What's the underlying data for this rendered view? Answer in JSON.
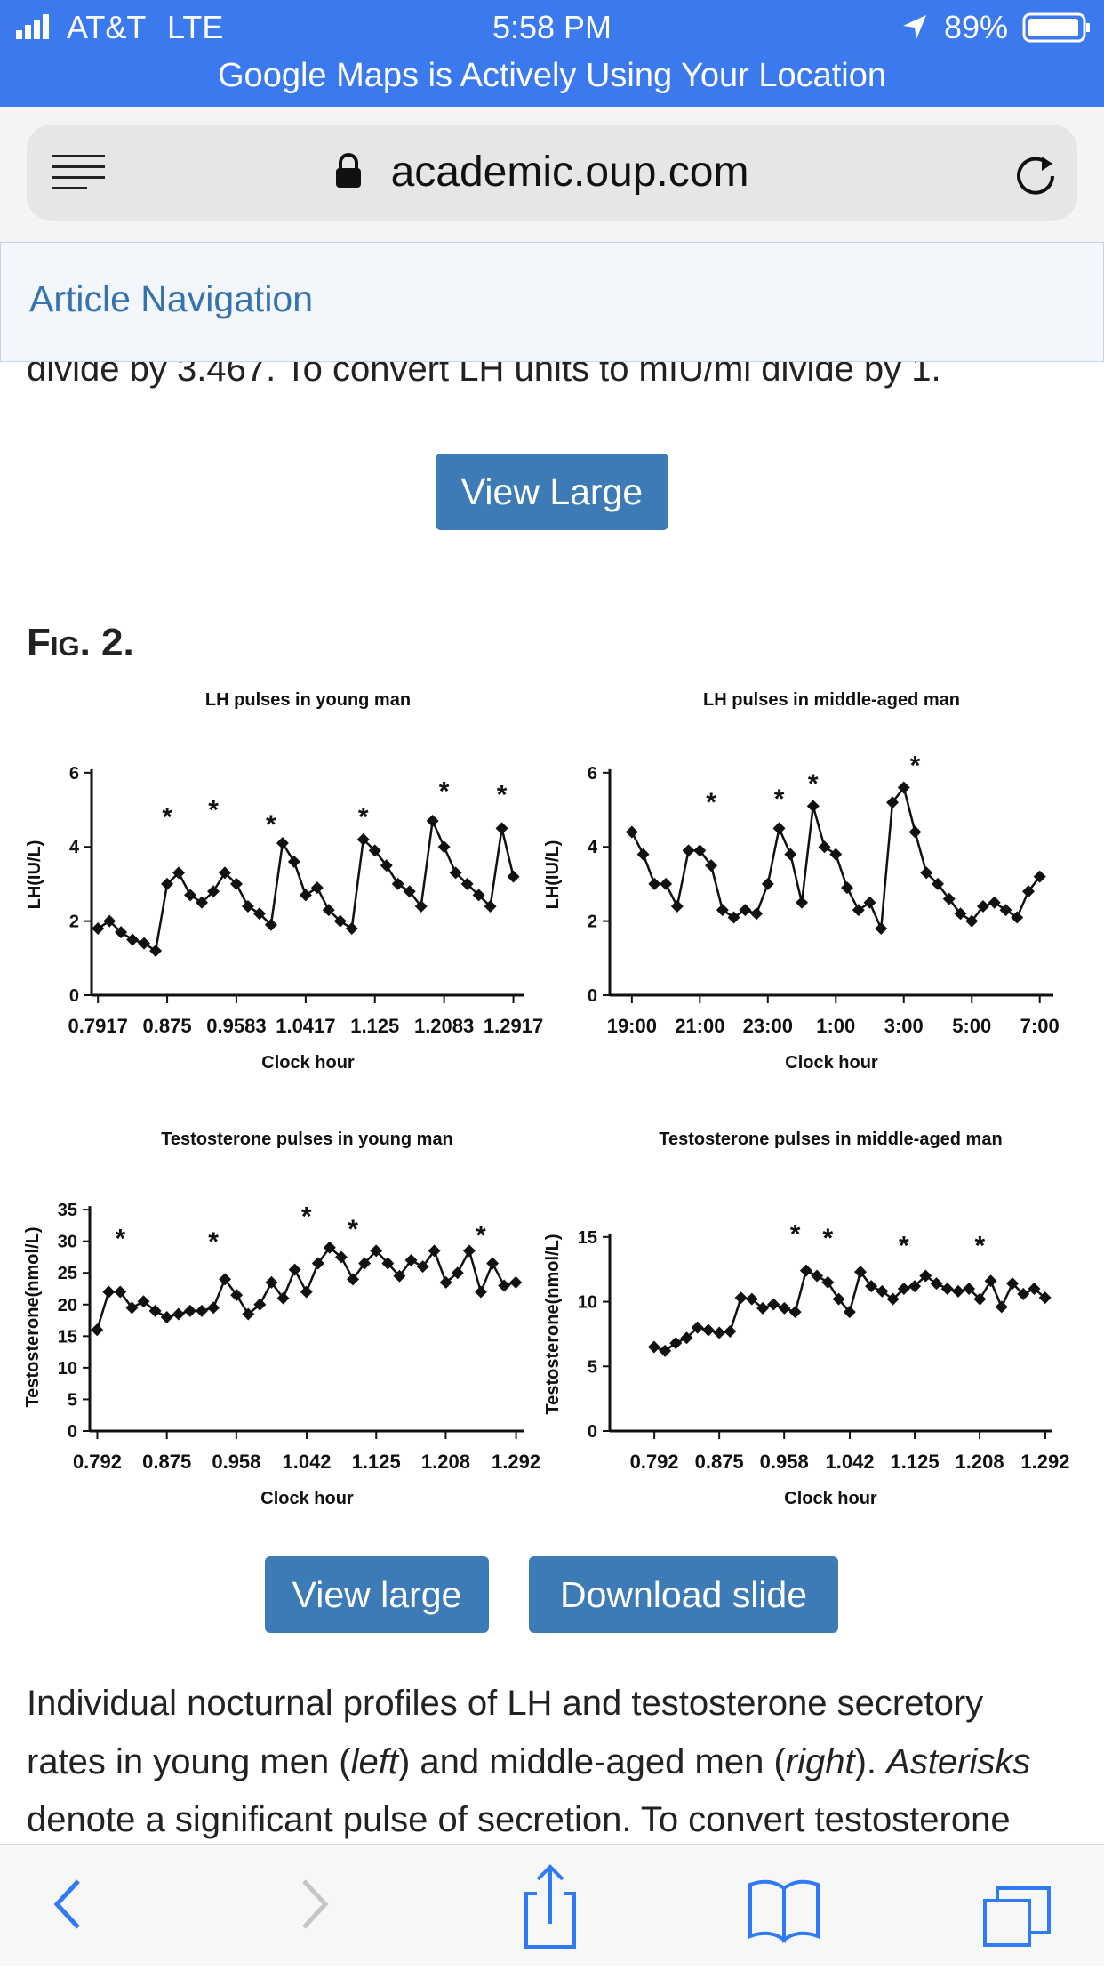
{
  "status_bar": {
    "carrier": "AT&T",
    "network": "LTE",
    "time": "5:58 PM",
    "battery": "89%"
  },
  "banner": "Google Maps is Actively Using Your Location",
  "url": "academic.oup.com",
  "article_nav": "Article Navigation",
  "partial_text": "divide by 3.467. To convert LH units to mIU/ml divide by 1.",
  "view_large_top": "View Large",
  "figure_label": "Fig. 2.",
  "chart_data": [
    {
      "type": "line",
      "title": "LH pulses in young man",
      "x_label": "Clock hour",
      "y_label": "LH(IU/L)",
      "x": [
        0.7917,
        0.8056,
        0.8194,
        0.8333,
        0.8472,
        0.8611,
        0.875,
        0.8889,
        0.9028,
        0.9167,
        0.9306,
        0.9444,
        0.9583,
        0.9722,
        0.9861,
        1.0,
        1.0139,
        1.0278,
        1.0417,
        1.0556,
        1.0694,
        1.0833,
        1.0972,
        1.1111,
        1.125,
        1.1389,
        1.1528,
        1.1667,
        1.1806,
        1.1944,
        1.2083,
        1.2222,
        1.2361,
        1.25,
        1.2639,
        1.2778,
        1.2917
      ],
      "values": [
        1.8,
        2.0,
        1.7,
        1.5,
        1.4,
        1.2,
        3.0,
        3.3,
        2.7,
        2.5,
        2.8,
        3.3,
        3.0,
        2.4,
        2.2,
        1.9,
        4.1,
        3.6,
        2.7,
        2.9,
        2.3,
        2.0,
        1.8,
        4.2,
        3.9,
        3.5,
        3.0,
        2.8,
        2.4,
        4.7,
        4.0,
        3.3,
        3.0,
        2.7,
        2.4,
        4.5,
        3.2
      ],
      "color": "#111111",
      "xlim": [
        0.784,
        1.305
      ],
      "xticks": [
        0.7917,
        0.875,
        0.9583,
        1.0417,
        1.125,
        1.2083,
        1.2917
      ],
      "ylim": [
        0,
        6.5
      ],
      "yticks": [
        0,
        2,
        4,
        6
      ],
      "grid": false,
      "annotations": [
        {
          "x": 0.875,
          "y": 4.9,
          "text": "*"
        },
        {
          "x": 0.9306,
          "y": 5.1,
          "text": "*"
        },
        {
          "x": 1.0,
          "y": 4.7,
          "text": "*"
        },
        {
          "x": 1.1111,
          "y": 4.9,
          "text": "*"
        },
        {
          "x": 1.2083,
          "y": 5.6,
          "text": "*"
        },
        {
          "x": 1.2778,
          "y": 5.5,
          "text": "*"
        }
      ]
    },
    {
      "type": "line",
      "title": "LH pulses in middle-aged man",
      "x_label": "Clock hour",
      "y_label": "LH(IU/L)",
      "x": [
        19,
        19.333,
        19.667,
        20,
        20.333,
        20.667,
        21,
        21.333,
        21.667,
        22,
        22.333,
        22.667,
        23,
        23.333,
        23.667,
        24,
        24.333,
        24.667,
        25,
        25.333,
        25.667,
        26,
        26.333,
        26.667,
        27,
        27.333,
        27.667,
        28,
        28.333,
        28.667,
        29,
        29.333,
        29.667,
        30,
        30.333,
        30.667,
        31
      ],
      "values": [
        4.4,
        3.8,
        3.0,
        3.0,
        2.4,
        3.9,
        3.9,
        3.5,
        2.3,
        2.1,
        2.3,
        2.2,
        3.0,
        4.5,
        3.8,
        2.5,
        5.1,
        4.0,
        3.8,
        2.9,
        2.3,
        2.5,
        1.8,
        5.2,
        5.6,
        4.4,
        3.3,
        3.0,
        2.6,
        2.2,
        2.0,
        2.4,
        2.5,
        2.3,
        2.1,
        2.8,
        3.2
      ],
      "color": "#111111",
      "xlim": [
        18.35,
        31.4
      ],
      "xticks": [
        {
          "value": 19,
          "label": "19:00"
        },
        {
          "value": 21,
          "label": "21:00"
        },
        {
          "value": 23,
          "label": "23:00"
        },
        {
          "value": 25,
          "label": "1:00"
        },
        {
          "value": 27,
          "label": "3:00"
        },
        {
          "value": 29,
          "label": "5:00"
        },
        {
          "value": 31,
          "label": "7:00"
        }
      ],
      "ylim": [
        0,
        6.5
      ],
      "yticks": [
        0,
        2,
        4,
        6
      ],
      "grid": false,
      "annotations": [
        {
          "x": 21.333,
          "y": 5.3,
          "text": "*"
        },
        {
          "x": 23.333,
          "y": 5.4,
          "text": "*"
        },
        {
          "x": 24.333,
          "y": 5.8,
          "text": "*"
        },
        {
          "x": 27.333,
          "y": 6.3,
          "text": "*"
        }
      ]
    },
    {
      "type": "line",
      "title": "Testosterone pulses in young man",
      "x_label": "Clock hour",
      "y_label": "Testosterone(nmol/L)",
      "x": [
        0.7917,
        0.8056,
        0.8194,
        0.8333,
        0.8472,
        0.8611,
        0.875,
        0.8889,
        0.9028,
        0.9167,
        0.9306,
        0.9444,
        0.9583,
        0.9722,
        0.9861,
        1.0,
        1.0139,
        1.0278,
        1.0417,
        1.0556,
        1.0694,
        1.0833,
        1.0972,
        1.1111,
        1.125,
        1.1389,
        1.1528,
        1.1667,
        1.1806,
        1.1944,
        1.2083,
        1.2222,
        1.2361,
        1.25,
        1.2639,
        1.2778,
        1.2917
      ],
      "values": [
        16,
        22,
        22,
        19.5,
        20.5,
        19,
        18,
        18.5,
        19,
        19,
        19.5,
        24,
        21.5,
        18.5,
        20,
        23.5,
        21,
        25.5,
        22,
        26.5,
        29,
        27.5,
        24,
        26.5,
        28.5,
        26.5,
        24.5,
        27,
        26,
        28.5,
        23.5,
        25,
        28.5,
        22,
        26.5,
        23,
        23.5
      ],
      "color": "#111111",
      "xlim": [
        0.783,
        1.302
      ],
      "xticks": [
        0.792,
        0.875,
        0.958,
        1.042,
        1.125,
        1.208,
        1.292
      ],
      "ylim": [
        0,
        36
      ],
      "yticks": [
        0,
        5,
        10,
        15,
        20,
        25,
        30,
        35
      ],
      "grid": false,
      "annotations": [
        {
          "x": 0.8194,
          "y": 31,
          "text": "*"
        },
        {
          "x": 0.9306,
          "y": 30.5,
          "text": "*"
        },
        {
          "x": 1.0417,
          "y": 34.5,
          "text": "*"
        },
        {
          "x": 1.0972,
          "y": 32.5,
          "text": "*"
        },
        {
          "x": 1.25,
          "y": 31.5,
          "text": "*"
        }
      ]
    },
    {
      "type": "line",
      "title": "Testosterone pulses in middle-aged man",
      "x_label": "Clock hour",
      "y_label": "Testosterone(nmol/L)",
      "x": [
        0.7917,
        0.8056,
        0.8194,
        0.8333,
        0.8472,
        0.8611,
        0.875,
        0.8889,
        0.9028,
        0.9167,
        0.9306,
        0.9444,
        0.9583,
        0.9722,
        0.9861,
        1.0,
        1.0139,
        1.0278,
        1.0417,
        1.0556,
        1.0694,
        1.0833,
        1.0972,
        1.1111,
        1.125,
        1.1389,
        1.1528,
        1.1667,
        1.1806,
        1.1944,
        1.2083,
        1.2222,
        1.2361,
        1.25,
        1.2639,
        1.2778,
        1.2917
      ],
      "values": [
        6.5,
        6.2,
        6.8,
        7.2,
        8,
        7.8,
        7.6,
        7.7,
        10.3,
        10.2,
        9.5,
        9.8,
        9.5,
        9.2,
        12.4,
        12.0,
        11.5,
        10.2,
        9.2,
        12.3,
        11.2,
        10.8,
        10.2,
        11.0,
        11.2,
        12.0,
        11.4,
        11.0,
        10.8,
        11.0,
        10.2,
        11.6,
        9.6,
        11.4,
        10.6,
        11.0,
        10.3
      ],
      "color": "#111111",
      "xlim": [
        0.735,
        1.3
      ],
      "xticks": [
        0.792,
        0.875,
        0.958,
        1.042,
        1.125,
        1.208,
        1.292
      ],
      "ylim": [
        0,
        16.5
      ],
      "yticks": [
        0,
        5,
        10,
        15
      ],
      "grid": false,
      "annotations": [
        {
          "x": 0.9722,
          "y": 15.5,
          "text": "*"
        },
        {
          "x": 1.0139,
          "y": 15.2,
          "text": "*"
        },
        {
          "x": 1.1111,
          "y": 14.6,
          "text": "*"
        },
        {
          "x": 1.2083,
          "y": 14.6,
          "text": "*"
        }
      ]
    }
  ],
  "view_large": "View large",
  "download_slide": "Download slide",
  "caption": {
    "line1": "Individual nocturnal profiles of LH and testosterone secretory",
    "line2": [
      "rates in young men (",
      "left",
      ") and middle-aged men (",
      "right",
      "). ",
      "Asterisks"
    ],
    "line3": "denote a significant pulse of secretion. To convert testosterone"
  }
}
